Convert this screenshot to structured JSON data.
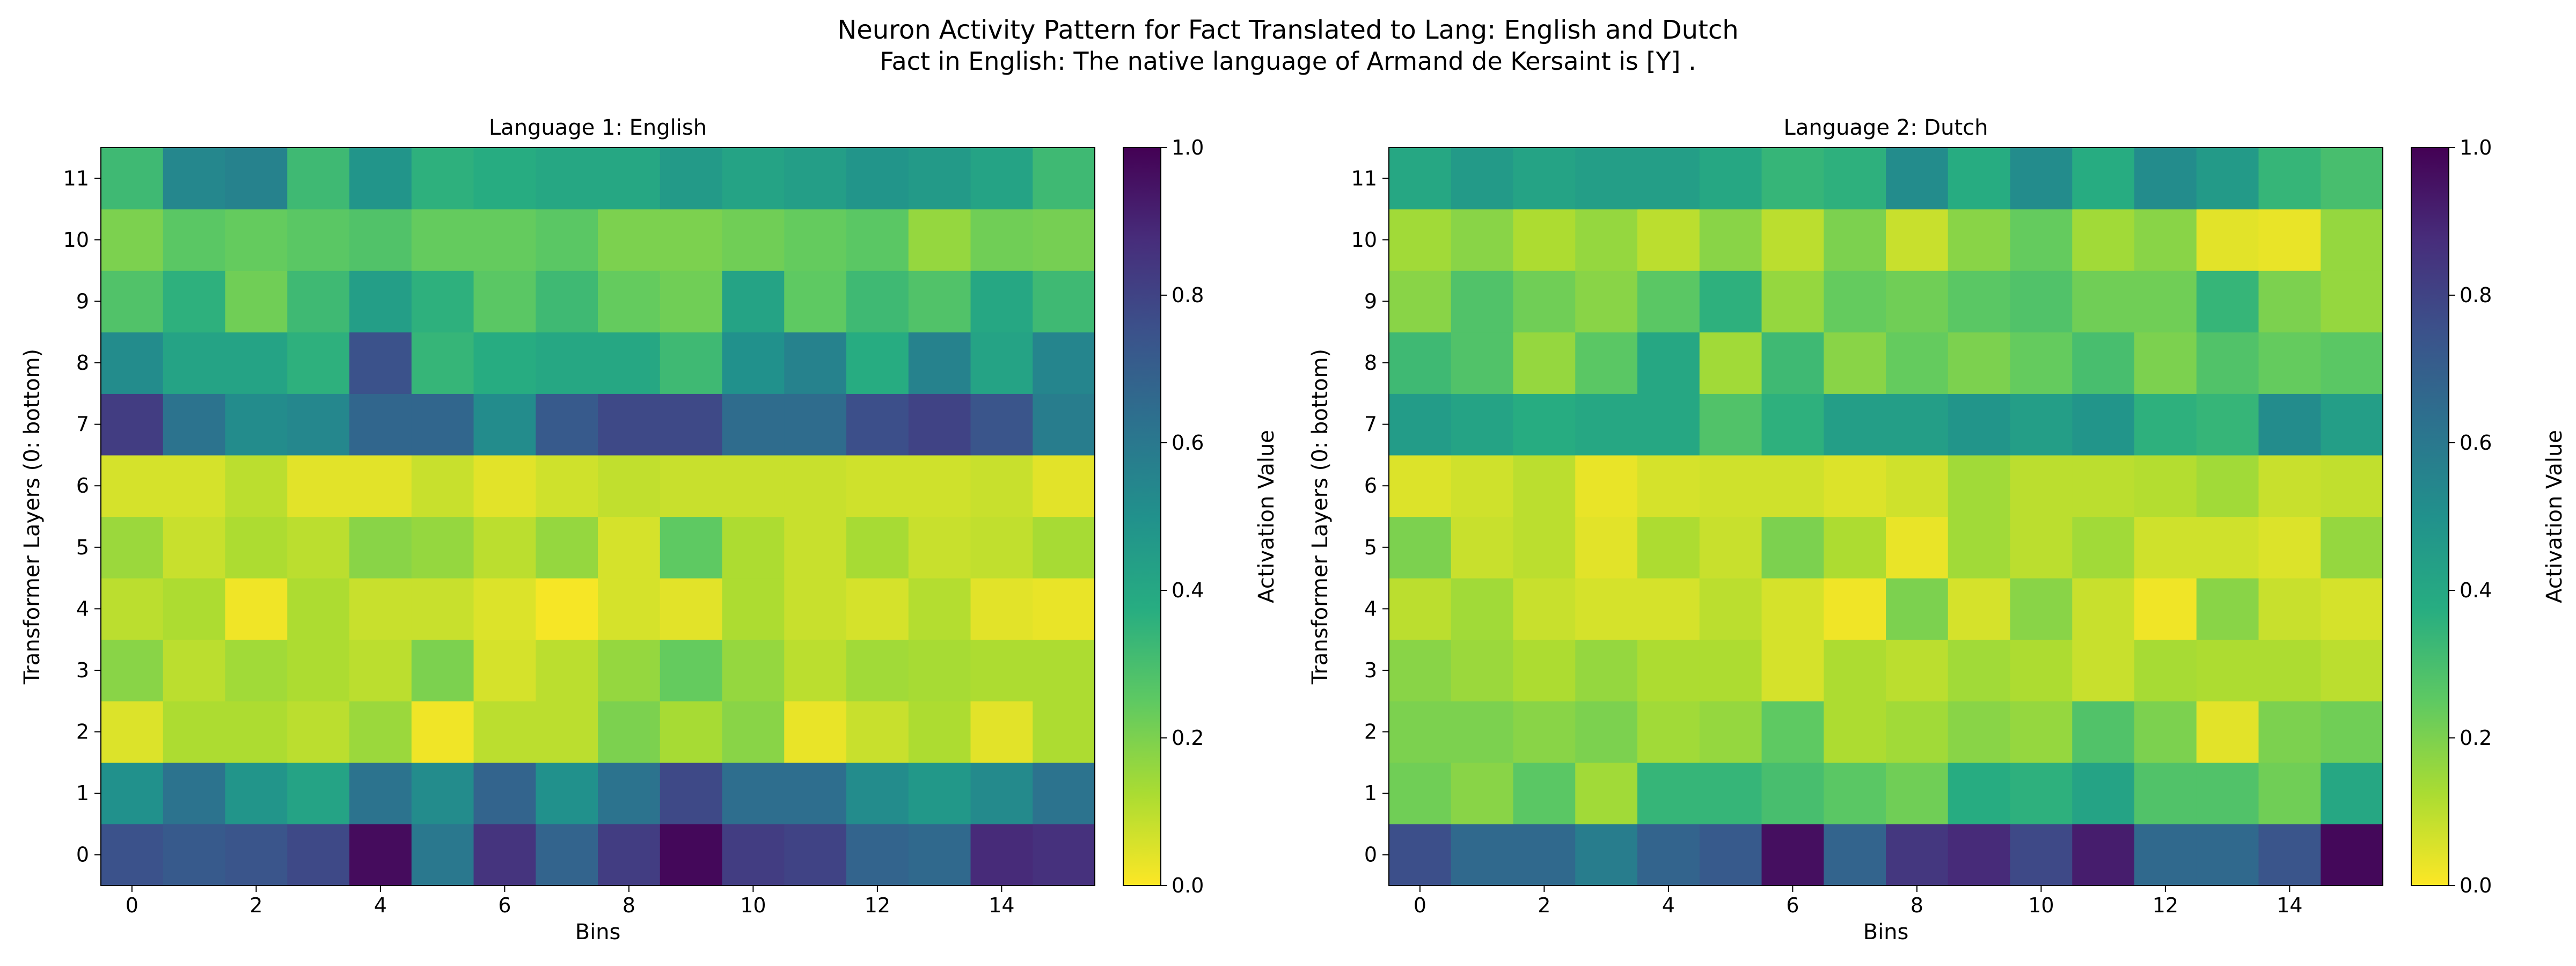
{
  "figure": {
    "title_line1": "Neuron Activity Pattern for Fact Translated to Lang: English and Dutch",
    "title_line2": "Fact in English: The native language of Armand de Kersaint is [Y] ."
  },
  "chart_data": [
    {
      "type": "heatmap",
      "title": "Language 1: English",
      "xlabel": "Bins",
      "ylabel": "Transformer Layers (0: bottom)",
      "colorbar_label": "Activation Value",
      "colormap": "viridis_r",
      "vmin": 0.0,
      "vmax": 1.0,
      "x_ticks": [
        0,
        2,
        4,
        6,
        8,
        10,
        12,
        14
      ],
      "y_ticks": [
        0,
        1,
        2,
        3,
        4,
        5,
        6,
        7,
        8,
        9,
        10,
        11
      ],
      "colorbar_ticks": [
        "0.0",
        "0.2",
        "0.4",
        "0.6",
        "0.8",
        "1.0"
      ],
      "rows_layer0_to_layer11": [
        [
          0.75,
          0.72,
          0.74,
          0.78,
          0.97,
          0.6,
          0.85,
          0.68,
          0.82,
          0.98,
          0.82,
          0.8,
          0.68,
          0.66,
          0.88,
          0.86
        ],
        [
          0.5,
          0.62,
          0.48,
          0.42,
          0.62,
          0.52,
          0.68,
          0.5,
          0.62,
          0.78,
          0.64,
          0.64,
          0.52,
          0.47,
          0.53,
          0.62
        ],
        [
          0.05,
          0.12,
          0.12,
          0.1,
          0.15,
          0.02,
          0.1,
          0.1,
          0.2,
          0.13,
          0.18,
          0.03,
          0.08,
          0.12,
          0.04,
          0.12
        ],
        [
          0.18,
          0.1,
          0.14,
          0.12,
          0.1,
          0.2,
          0.06,
          0.1,
          0.16,
          0.24,
          0.16,
          0.1,
          0.14,
          0.13,
          0.12,
          0.12
        ],
        [
          0.1,
          0.12,
          0.02,
          0.12,
          0.08,
          0.08,
          0.05,
          0.01,
          0.06,
          0.04,
          0.12,
          0.08,
          0.06,
          0.11,
          0.04,
          0.03
        ],
        [
          0.15,
          0.08,
          0.12,
          0.1,
          0.18,
          0.16,
          0.1,
          0.16,
          0.06,
          0.25,
          0.12,
          0.08,
          0.13,
          0.08,
          0.09,
          0.13
        ],
        [
          0.06,
          0.06,
          0.1,
          0.04,
          0.04,
          0.08,
          0.04,
          0.07,
          0.09,
          0.08,
          0.08,
          0.08,
          0.07,
          0.07,
          0.08,
          0.04
        ],
        [
          0.82,
          0.62,
          0.52,
          0.54,
          0.67,
          0.67,
          0.52,
          0.72,
          0.78,
          0.78,
          0.65,
          0.65,
          0.76,
          0.8,
          0.74,
          0.58
        ],
        [
          0.52,
          0.42,
          0.42,
          0.36,
          0.75,
          0.34,
          0.38,
          0.4,
          0.4,
          0.32,
          0.5,
          0.56,
          0.38,
          0.56,
          0.42,
          0.55
        ],
        [
          0.28,
          0.36,
          0.22,
          0.32,
          0.44,
          0.36,
          0.26,
          0.32,
          0.24,
          0.22,
          0.42,
          0.25,
          0.32,
          0.28,
          0.4,
          0.32
        ],
        [
          0.2,
          0.26,
          0.24,
          0.26,
          0.28,
          0.24,
          0.24,
          0.26,
          0.2,
          0.2,
          0.22,
          0.24,
          0.26,
          0.16,
          0.22,
          0.21
        ],
        [
          0.32,
          0.54,
          0.56,
          0.32,
          0.48,
          0.36,
          0.38,
          0.4,
          0.4,
          0.46,
          0.42,
          0.44,
          0.48,
          0.46,
          0.42,
          0.32
        ]
      ]
    },
    {
      "type": "heatmap",
      "title": "Language 2: Dutch",
      "xlabel": "Bins",
      "ylabel": "Transformer Layers (0: bottom)",
      "colorbar_label": "Activation Value",
      "colormap": "viridis_r",
      "vmin": 0.0,
      "vmax": 1.0,
      "x_ticks": [
        0,
        2,
        4,
        6,
        8,
        10,
        12,
        14
      ],
      "y_ticks": [
        0,
        1,
        2,
        3,
        4,
        5,
        6,
        7,
        8,
        9,
        10,
        11
      ],
      "colorbar_ticks": [
        "0.0",
        "0.2",
        "0.4",
        "0.6",
        "0.8",
        "1.0"
      ],
      "rows_layer0_to_layer11": [
        [
          0.76,
          0.66,
          0.66,
          0.58,
          0.68,
          0.72,
          0.96,
          0.68,
          0.84,
          0.88,
          0.78,
          0.92,
          0.66,
          0.66,
          0.74,
          0.98
        ],
        [
          0.22,
          0.18,
          0.26,
          0.14,
          0.34,
          0.34,
          0.3,
          0.26,
          0.22,
          0.38,
          0.36,
          0.42,
          0.28,
          0.28,
          0.22,
          0.4
        ],
        [
          0.2,
          0.2,
          0.18,
          0.2,
          0.14,
          0.16,
          0.25,
          0.12,
          0.14,
          0.18,
          0.16,
          0.28,
          0.2,
          0.04,
          0.2,
          0.22
        ],
        [
          0.18,
          0.15,
          0.12,
          0.16,
          0.12,
          0.12,
          0.06,
          0.12,
          0.1,
          0.14,
          0.12,
          0.08,
          0.13,
          0.12,
          0.12,
          0.1
        ],
        [
          0.1,
          0.14,
          0.08,
          0.06,
          0.06,
          0.1,
          0.06,
          0.02,
          0.2,
          0.06,
          0.18,
          0.08,
          0.02,
          0.18,
          0.08,
          0.06
        ],
        [
          0.2,
          0.08,
          0.1,
          0.04,
          0.12,
          0.08,
          0.2,
          0.12,
          0.03,
          0.14,
          0.1,
          0.14,
          0.07,
          0.07,
          0.05,
          0.16
        ],
        [
          0.05,
          0.07,
          0.1,
          0.03,
          0.06,
          0.07,
          0.07,
          0.05,
          0.07,
          0.14,
          0.1,
          0.1,
          0.11,
          0.14,
          0.08,
          0.09
        ],
        [
          0.45,
          0.42,
          0.38,
          0.4,
          0.4,
          0.28,
          0.36,
          0.44,
          0.44,
          0.48,
          0.44,
          0.48,
          0.36,
          0.34,
          0.52,
          0.44
        ],
        [
          0.32,
          0.28,
          0.16,
          0.26,
          0.4,
          0.14,
          0.32,
          0.18,
          0.24,
          0.2,
          0.24,
          0.3,
          0.2,
          0.28,
          0.24,
          0.26
        ],
        [
          0.18,
          0.28,
          0.22,
          0.18,
          0.26,
          0.36,
          0.16,
          0.24,
          0.22,
          0.26,
          0.28,
          0.22,
          0.22,
          0.34,
          0.2,
          0.16
        ],
        [
          0.14,
          0.18,
          0.12,
          0.16,
          0.1,
          0.18,
          0.1,
          0.2,
          0.08,
          0.18,
          0.24,
          0.14,
          0.18,
          0.04,
          0.03,
          0.16
        ],
        [
          0.4,
          0.46,
          0.42,
          0.44,
          0.44,
          0.4,
          0.34,
          0.36,
          0.52,
          0.38,
          0.52,
          0.38,
          0.52,
          0.46,
          0.34,
          0.3
        ]
      ]
    }
  ]
}
